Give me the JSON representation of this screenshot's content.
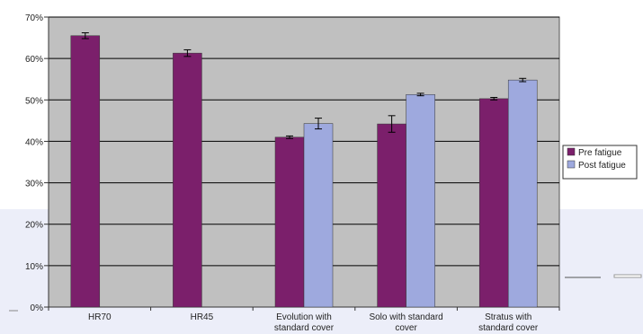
{
  "chart_data": {
    "type": "bar",
    "categories": [
      [
        "HR70"
      ],
      [
        "HR45"
      ],
      [
        "Evolution with",
        "standard cover"
      ],
      [
        "Solo with standard",
        "cover"
      ],
      [
        "Stratus with",
        "standard cover"
      ]
    ],
    "series": [
      {
        "name": "Pre fatigue",
        "color": "#7b1f6b",
        "values": [
          65.5,
          61.3,
          41.0,
          44.2,
          50.3
        ],
        "errors": [
          0.7,
          0.8,
          0.3,
          2.0,
          0.3
        ]
      },
      {
        "name": "Post fatigue",
        "color": "#9ea9de",
        "values": [
          null,
          null,
          44.3,
          51.3,
          54.8
        ],
        "errors": [
          null,
          null,
          1.3,
          0.3,
          0.4
        ]
      }
    ],
    "yticks": [
      "0%",
      "10%",
      "20%",
      "30%",
      "40%",
      "50%",
      "60%",
      "70%"
    ],
    "ylim": [
      0,
      70
    ],
    "grid": true,
    "legend_position": "right",
    "plot_background": "#c0c0c0",
    "gridline_color": "#000000"
  }
}
